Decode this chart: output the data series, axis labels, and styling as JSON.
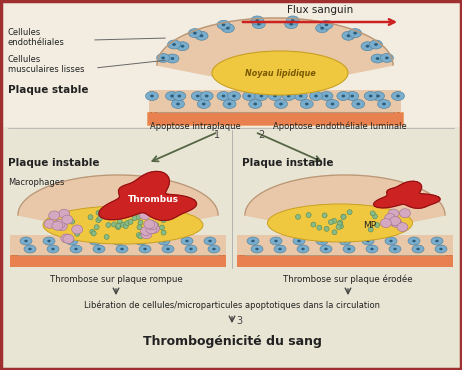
{
  "background_color": "#eae8de",
  "border_color": "#a03030",
  "title": "Thrombogénicité du sang",
  "flux_label": "Flux sanguin",
  "flux_arrow_color": "#cc2222",
  "plaque_stable_label": "Plaque stable",
  "plaque_instable1_label": "Plaque instable",
  "plaque_instable2_label": "Plaque instable",
  "cellules_endo_label": "Cellules\nendothéliales",
  "cellules_musc_label": "Cellules\nmusculaires lisses",
  "noyau_label": "Noyau lipidique",
  "thrombus_label": "Thrombus",
  "mp_label": "MP",
  "macrophages_label": "Macrophages",
  "apoptose1_label": "Apoptose intraplaque",
  "apoptose2_label": "Apoptose endothéliale luminale",
  "thrombose1_label": "Thrombose sur plaque rompue",
  "thrombose2_label": "Thrombose sur plaque érodée",
  "liberation_label": "Libération de cellules/microparticules apoptotiques dans la circulation",
  "plaque_skin_fill": "#e8c8a8",
  "plaque_skin_border": "#b89878",
  "plaque_tissue_fill": "#d4b898",
  "base_orange": "#e88050",
  "base_orange2": "#f0a060",
  "noyau_fill": "#f0c840",
  "noyau_border": "#c8a020",
  "thrombus_fill": "#cc2222",
  "thrombus_border": "#881111",
  "cell_blue_fill": "#7aadcc",
  "cell_blue_border": "#4a7d9c",
  "cell_blue_nucleus": "#2a5d7c",
  "cell_pink_fill": "#d4a8c0",
  "cell_pink_border": "#a07090",
  "cell_green_fill": "#88bb88",
  "cell_green_border": "#558855",
  "arrow_color_green": "#556644",
  "arrow_color_dark": "#444444",
  "text_dark": "#222222",
  "text_mid": "#444444",
  "label1": "1",
  "label2": "2",
  "label3": "3",
  "sep_line_color": "#aaaaaa",
  "top_bg": "#f0ede0",
  "bottom_bg": "#e8e8d8"
}
